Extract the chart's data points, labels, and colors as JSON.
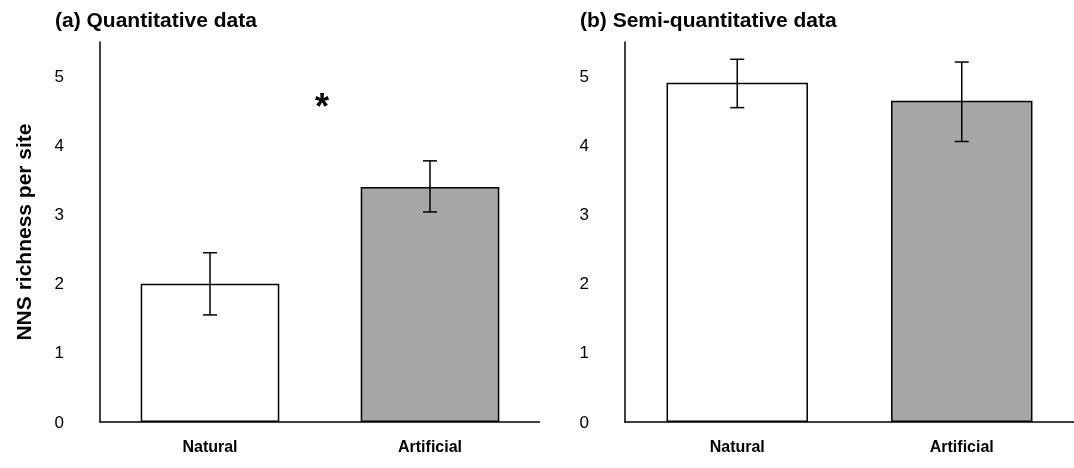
{
  "chart_data": [
    {
      "type": "bar",
      "title": "(a) Quantitative data",
      "ylabel": "NNS richness per site",
      "categories": [
        "Natural",
        "Artificial"
      ],
      "values": [
        2.0,
        3.4
      ],
      "colors": [
        "#ffffff",
        "#a6a6a6"
      ],
      "errors": [
        0.45,
        [
          3.04,
          3.78
        ]
      ],
      "ylim": [
        0,
        5.5
      ],
      "yticks": [
        0,
        1,
        2,
        3,
        4,
        5
      ],
      "grid": false,
      "annotations": [
        "*"
      ]
    },
    {
      "type": "bar",
      "title": "(b) Semi-quantitative data",
      "categories": [
        "Natural",
        "Artificial"
      ],
      "values": [
        4.91,
        4.65
      ],
      "colors": [
        "#ffffff",
        "#a6a6a6"
      ],
      "errors": [
        [
          4.55,
          5.25
        ],
        [
          4.06,
          5.21
        ]
      ],
      "ylim": [
        0,
        5.5
      ],
      "yticks": [
        0,
        1,
        2,
        3,
        4,
        5
      ],
      "grid": false
    }
  ]
}
